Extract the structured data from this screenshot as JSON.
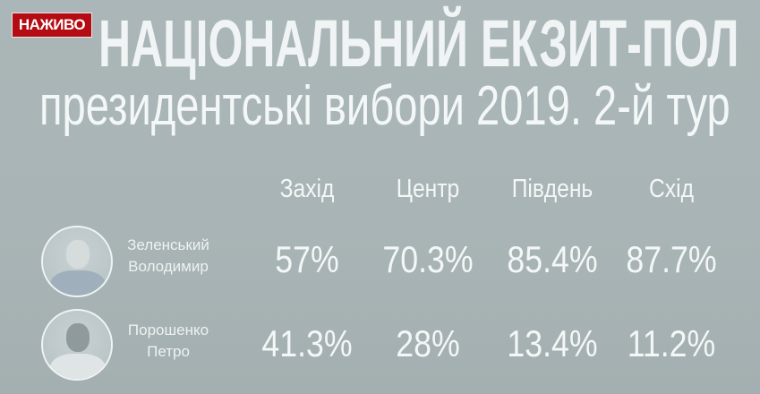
{
  "badge": {
    "label": "НАЖИВО",
    "color": "#b40c12"
  },
  "title": {
    "line1": "НАЦІОНАЛЬНИЙ ЕКЗИТ-ПОЛ",
    "line2": "президентські вибори 2019. 2-й тур"
  },
  "table": {
    "columns": [
      "Захід",
      "Центр",
      "Південь",
      "Схід"
    ],
    "rows": [
      {
        "name_line1": "Зеленський",
        "name_line2": "Володимир",
        "photo": "avatar-zelenskyi",
        "values": [
          "57%",
          "70.3%",
          "85.4%",
          "87.7%"
        ]
      },
      {
        "name_line1": "Порошенко",
        "name_line2": "Петро",
        "photo": "avatar-poroshenko",
        "values": [
          "41.3%",
          "28%",
          "13.4%",
          "11.2%"
        ]
      }
    ]
  }
}
